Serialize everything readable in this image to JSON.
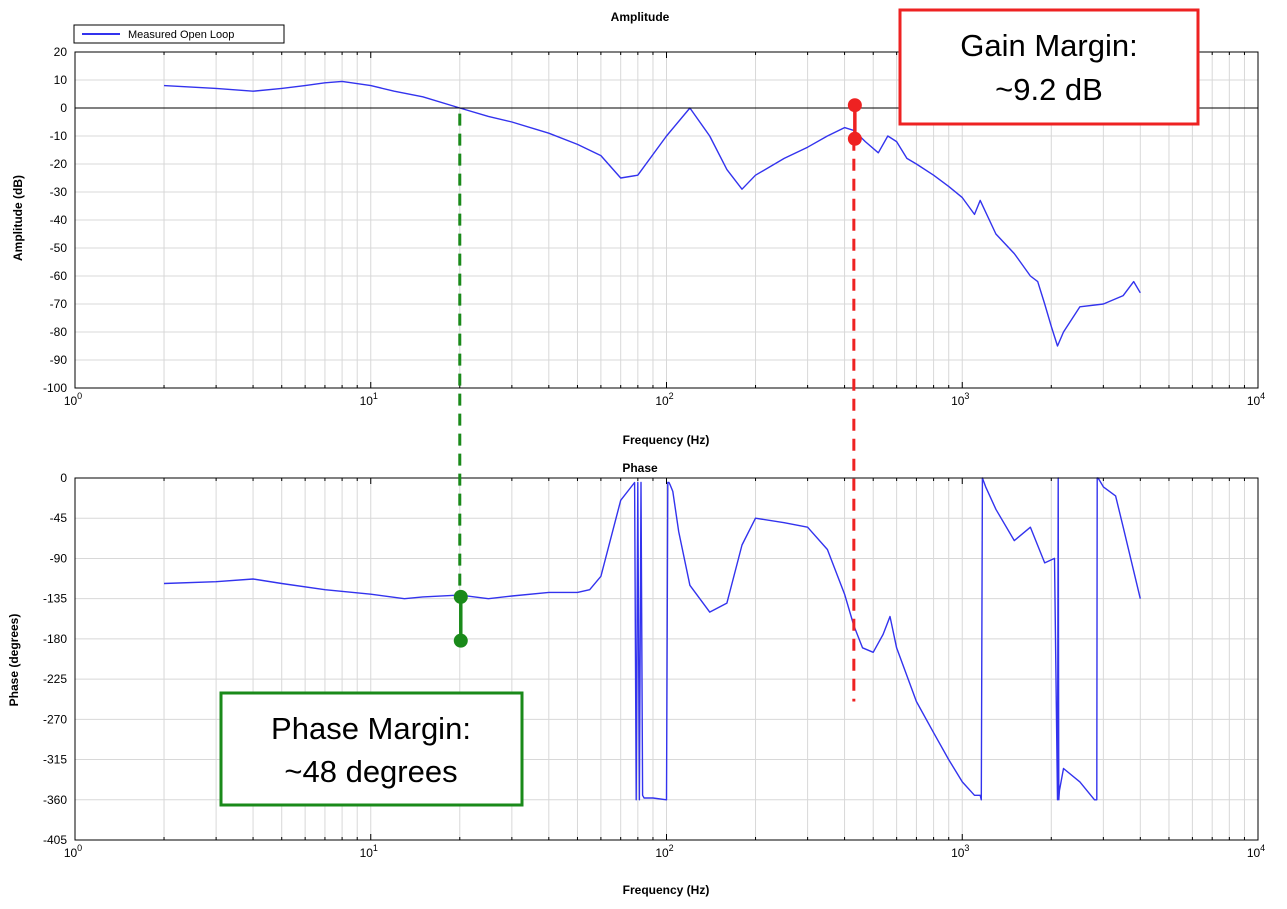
{
  "colors": {
    "series": "#3333ee",
    "gain_marker": "#ee2222",
    "phase_marker": "#1a8a1a",
    "grid": "#d8d8d8"
  },
  "legend": {
    "label": "Measured Open Loop",
    "placement": "top-left"
  },
  "chart_data": [
    {
      "type": "line",
      "title": "Amplitude",
      "xlabel": "Frequency (Hz)",
      "ylabel": "Amplitude (dB)",
      "xscale": "log",
      "xlim": [
        1,
        10000
      ],
      "ylim": [
        -100,
        20
      ],
      "xticks": [
        "10^0",
        "10^1",
        "10^2",
        "10^3",
        "10^4"
      ],
      "yticks": [
        "20",
        "10",
        "0",
        "-10",
        "-20",
        "-30",
        "-40",
        "-50",
        "-60",
        "-70",
        "-80",
        "-90",
        "-100"
      ],
      "grid": true,
      "reference_line": 0,
      "series": [
        {
          "name": "Measured Open Loop",
          "x": [
            2,
            3,
            4,
            5,
            6,
            7,
            8,
            10,
            12,
            15,
            20,
            25,
            30,
            40,
            50,
            60,
            70,
            80,
            100,
            120,
            140,
            160,
            180,
            200,
            250,
            300,
            350,
            400,
            430,
            470,
            520,
            560,
            600,
            650,
            700,
            800,
            900,
            1000,
            1100,
            1150,
            1300,
            1500,
            1700,
            1800,
            1900,
            2000,
            2100,
            2200,
            2500,
            3000,
            3500,
            3800,
            4000
          ],
          "y": [
            8,
            7,
            6,
            7,
            8,
            9,
            9.5,
            8,
            6,
            4,
            0,
            -3,
            -5,
            -9,
            -13,
            -17,
            -25,
            -24,
            -10,
            0,
            -10,
            -22,
            -29,
            -24,
            -18,
            -14,
            -10,
            -7,
            -8,
            -12,
            -16,
            -10,
            -12,
            -18,
            -20,
            -24,
            -28,
            -32,
            -38,
            -33,
            -45,
            -52,
            -60,
            -62,
            -70,
            -78,
            -85,
            -80,
            -71,
            -70,
            -67,
            -62,
            -66
          ]
        }
      ]
    },
    {
      "type": "line",
      "title": "Phase",
      "xlabel": "Frequency (Hz)",
      "ylabel": "Phase (degrees)",
      "xscale": "log",
      "xlim": [
        1,
        10000
      ],
      "ylim": [
        -405,
        0
      ],
      "xticks": [
        "10^0",
        "10^1",
        "10^2",
        "10^3",
        "10^4"
      ],
      "yticks": [
        "0",
        "-45",
        "-90",
        "-135",
        "-180",
        "-225",
        "-270",
        "-315",
        "-360",
        "-405"
      ],
      "grid": true,
      "series": [
        {
          "name": "Measured Open Loop",
          "x": [
            2,
            3,
            4,
            5,
            7,
            10,
            13,
            15,
            20,
            25,
            30,
            40,
            50,
            55,
            60,
            70,
            78,
            79,
            80,
            81,
            82,
            83,
            84,
            86,
            90,
            100,
            101,
            102,
            103,
            105,
            110,
            120,
            140,
            160,
            180,
            200,
            250,
            300,
            350,
            400,
            430,
            460,
            500,
            540,
            570,
            600,
            700,
            800,
            900,
            1000,
            1100,
            1150,
            1160,
            1170,
            1200,
            1300,
            1500,
            1700,
            1900,
            2050,
            2100,
            2110,
            2120,
            2130,
            2200,
            2500,
            2800,
            2850,
            2860,
            2880,
            3000,
            3300,
            3500,
            4000
          ],
          "y": [
            -118,
            -116,
            -113,
            -118,
            -125,
            -130,
            -135,
            -133,
            -131,
            -135,
            -132,
            -128,
            -128,
            -125,
            -110,
            -25,
            -5,
            -360,
            -5,
            -360,
            -5,
            -355,
            -358,
            -358,
            -358,
            -360,
            -5,
            -5,
            -8,
            -15,
            -60,
            -120,
            -150,
            -140,
            -75,
            -45,
            -50,
            -55,
            -80,
            -130,
            -165,
            -190,
            -195,
            -175,
            -155,
            -190,
            -250,
            -285,
            -315,
            -340,
            -355,
            -355,
            -360,
            0,
            -10,
            -35,
            -70,
            -55,
            -95,
            -90,
            -360,
            0,
            -360,
            -350,
            -325,
            -340,
            -360,
            -360,
            0,
            0,
            -10,
            -20,
            -55,
            -135
          ]
        }
      ]
    }
  ],
  "annotations": {
    "gain_margin": {
      "line1": "Gain Margin:",
      "line2": "~9.2 dB",
      "frequency": 430,
      "from_db": 1,
      "to_db": -11
    },
    "phase_margin": {
      "line1": "Phase Margin:",
      "line2": "~48 degrees",
      "frequency": 20,
      "from_deg": -133,
      "to_deg": -182
    }
  }
}
